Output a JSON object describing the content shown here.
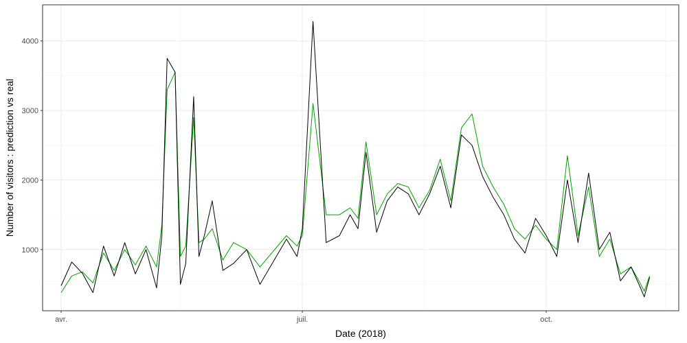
{
  "chart_data": {
    "type": "line",
    "title": "",
    "xlabel": "Date (2018)",
    "ylabel": "Number of visitors : prediction vs real",
    "x_range": [
      "2018-03-25",
      "2018-11-20"
    ],
    "ylim": [
      120,
      4520
    ],
    "x_ticks": [
      {
        "date": "2018-04-01",
        "label": "avr."
      },
      {
        "date": "2018-07-01",
        "label": "juil."
      },
      {
        "date": "2018-10-01",
        "label": "oct."
      }
    ],
    "y_ticks": [
      {
        "value": 1000,
        "label": "1000"
      },
      {
        "value": 2000,
        "label": "2000"
      },
      {
        "value": 3000,
        "label": "3000"
      },
      {
        "value": 4000,
        "label": "4000"
      }
    ],
    "grid": true,
    "legend": "none",
    "series": [
      {
        "color": "#000000",
        "x": [
          "2018-04-01",
          "2018-04-05",
          "2018-04-09",
          "2018-04-13",
          "2018-04-17",
          "2018-04-21",
          "2018-04-25",
          "2018-04-29",
          "2018-05-03",
          "2018-05-07",
          "2018-05-09",
          "2018-05-11",
          "2018-05-14",
          "2018-05-16",
          "2018-05-18",
          "2018-05-21",
          "2018-05-23",
          "2018-05-25",
          "2018-05-28",
          "2018-06-01",
          "2018-06-05",
          "2018-06-10",
          "2018-06-15",
          "2018-06-25",
          "2018-06-29",
          "2018-07-01",
          "2018-07-05",
          "2018-07-10",
          "2018-07-15",
          "2018-07-19",
          "2018-07-22",
          "2018-07-25",
          "2018-07-29",
          "2018-08-02",
          "2018-08-06",
          "2018-08-10",
          "2018-08-14",
          "2018-08-18",
          "2018-08-22",
          "2018-08-26",
          "2018-08-30",
          "2018-09-03",
          "2018-09-07",
          "2018-09-11",
          "2018-09-15",
          "2018-09-19",
          "2018-09-23",
          "2018-09-27",
          "2018-10-01",
          "2018-10-05",
          "2018-10-09",
          "2018-10-13",
          "2018-10-17",
          "2018-10-21",
          "2018-10-25",
          "2018-10-29",
          "2018-11-02",
          "2018-11-05",
          "2018-11-07",
          "2018-11-09"
        ],
        "y": [
          480,
          820,
          660,
          380,
          1050,
          620,
          1100,
          650,
          1000,
          450,
          1200,
          3750,
          3550,
          500,
          800,
          3200,
          900,
          1200,
          1700,
          700,
          800,
          1000,
          500,
          1150,
          900,
          1300,
          4280,
          1100,
          1200,
          1500,
          1300,
          2400,
          1250,
          1700,
          1900,
          1800,
          1500,
          1800,
          2200,
          1600,
          2650,
          2500,
          2050,
          1750,
          1500,
          1150,
          950,
          1450,
          1200,
          900,
          2000,
          1100,
          2100,
          1000,
          1250,
          550,
          750,
          500,
          320,
          600
        ]
      },
      {
        "color": "#00a000",
        "x": [
          "2018-04-01",
          "2018-04-05",
          "2018-04-09",
          "2018-04-13",
          "2018-04-17",
          "2018-04-21",
          "2018-04-25",
          "2018-04-29",
          "2018-05-03",
          "2018-05-07",
          "2018-05-09",
          "2018-05-11",
          "2018-05-14",
          "2018-05-16",
          "2018-05-18",
          "2018-05-21",
          "2018-05-23",
          "2018-05-25",
          "2018-05-28",
          "2018-06-01",
          "2018-06-05",
          "2018-06-10",
          "2018-06-15",
          "2018-06-25",
          "2018-06-29",
          "2018-07-01",
          "2018-07-05",
          "2018-07-10",
          "2018-07-15",
          "2018-07-19",
          "2018-07-22",
          "2018-07-25",
          "2018-07-29",
          "2018-08-02",
          "2018-08-06",
          "2018-08-10",
          "2018-08-14",
          "2018-08-18",
          "2018-08-22",
          "2018-08-26",
          "2018-08-30",
          "2018-09-03",
          "2018-09-07",
          "2018-09-11",
          "2018-09-15",
          "2018-09-19",
          "2018-09-23",
          "2018-09-27",
          "2018-10-01",
          "2018-10-05",
          "2018-10-09",
          "2018-10-13",
          "2018-10-17",
          "2018-10-21",
          "2018-10-25",
          "2018-10-29",
          "2018-11-02",
          "2018-11-05",
          "2018-11-07",
          "2018-11-09"
        ],
        "y": [
          380,
          620,
          680,
          520,
          950,
          700,
          1000,
          780,
          1050,
          750,
          1350,
          3300,
          3550,
          900,
          1050,
          2900,
          1100,
          1150,
          1300,
          850,
          1100,
          1000,
          750,
          1200,
          1050,
          1200,
          3100,
          1500,
          1500,
          1600,
          1450,
          2550,
          1500,
          1800,
          1950,
          1900,
          1600,
          1850,
          2300,
          1700,
          2750,
          2950,
          2200,
          1900,
          1650,
          1300,
          1150,
          1350,
          1150,
          1000,
          2350,
          1200,
          1900,
          900,
          1150,
          650,
          750,
          550,
          400,
          620
        ]
      }
    ]
  }
}
